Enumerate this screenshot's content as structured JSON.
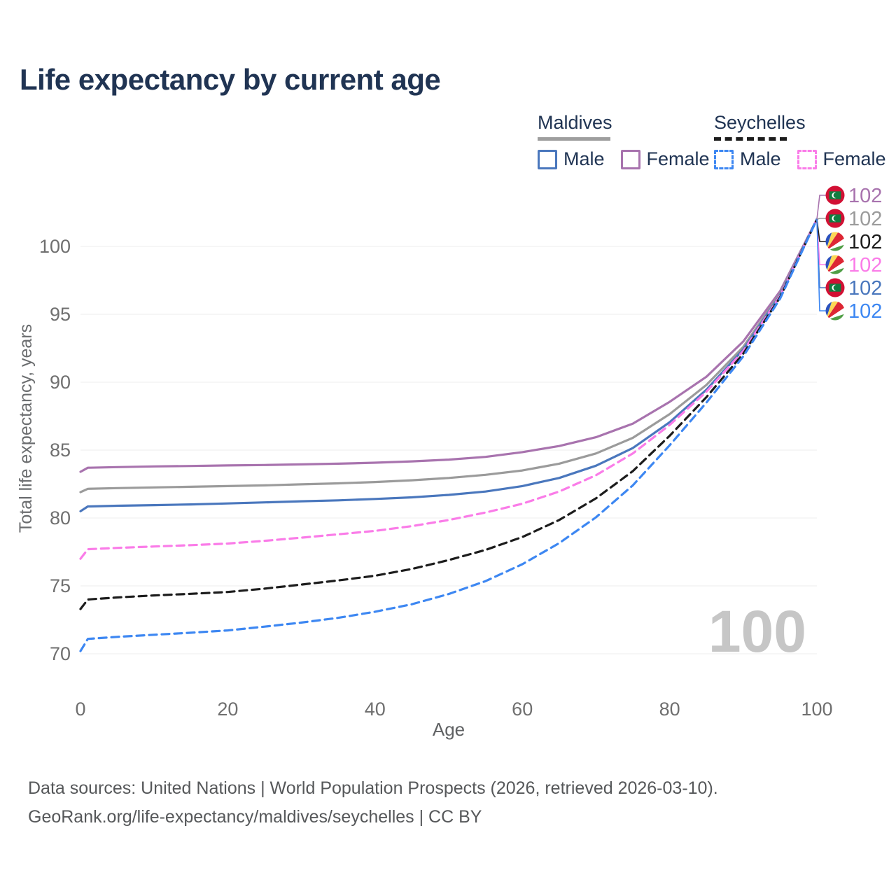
{
  "title": "Life expectancy by current age",
  "legend": {
    "groups": [
      {
        "country": "Maldives",
        "line_color": "#9e9e9e",
        "line_dashed": false,
        "items": [
          {
            "label": "Male",
            "color": "#4a77bd",
            "dashed": false
          },
          {
            "label": "Female",
            "color": "#a873ae",
            "dashed": false
          }
        ]
      },
      {
        "country": "Seychelles",
        "line_color": "#1c1c1c",
        "line_dashed": true,
        "items": [
          {
            "label": "Male",
            "color": "#3d87f2",
            "dashed": true
          },
          {
            "label": "Female",
            "color": "#fa7ce8",
            "dashed": true
          }
        ]
      }
    ]
  },
  "watermark": "100",
  "footer": {
    "line1": "Data sources: United Nations | World Population Prospects (2026, retrieved 2026-03-10).",
    "line2": "GeoRank.org/life-expectancy/maldives/seychelles | CC BY"
  },
  "flags": {
    "maldives": {
      "red": "#d21034",
      "green": "#0f7d40",
      "crescent": "#ffffff"
    },
    "seychelles": {
      "blue": "#2a51be",
      "yellow": "#fcd856",
      "red": "#dd2633",
      "white": "#ffffff",
      "green": "#4f9e45"
    }
  },
  "chart_data": {
    "type": "line",
    "title": "Life expectancy by current age",
    "xlabel": "Age",
    "ylabel": "Total life expectancy, years",
    "xlim": [
      0,
      100
    ],
    "ylim": [
      68.5,
      103.5
    ],
    "x_ticks": [
      0,
      20,
      40,
      60,
      80,
      100
    ],
    "y_ticks": [
      70,
      75,
      80,
      85,
      90,
      95,
      100
    ],
    "grid": "horizontal-only",
    "legend_position": "top-right",
    "tick_color": "#6f6f6f",
    "grid_color": "#ececec",
    "watermark_color": "#c6c6c6",
    "ages": [
      0,
      1,
      5,
      10,
      15,
      20,
      25,
      30,
      35,
      40,
      45,
      50,
      55,
      60,
      65,
      70,
      75,
      80,
      85,
      90,
      95,
      100
    ],
    "series": [
      {
        "name": "Maldives Female",
        "color": "#a873ae",
        "dashed": false,
        "flag": "maldives",
        "end_label": "102",
        "label_row": 0,
        "values": [
          83.4,
          83.7,
          83.75,
          83.8,
          83.83,
          83.87,
          83.9,
          83.95,
          84.0,
          84.07,
          84.17,
          84.3,
          84.5,
          84.85,
          85.3,
          85.95,
          86.95,
          88.55,
          90.4,
          93.0,
          96.7,
          102
        ]
      },
      {
        "name": "Maldives",
        "color": "#9b9b9b",
        "dashed": false,
        "flag": "maldives",
        "end_label": "102",
        "label_row": 1,
        "values": [
          81.9,
          82.15,
          82.2,
          82.25,
          82.3,
          82.35,
          82.4,
          82.48,
          82.55,
          82.65,
          82.78,
          82.95,
          83.18,
          83.5,
          84.0,
          84.75,
          85.9,
          87.65,
          89.8,
          92.6,
          96.5,
          102
        ]
      },
      {
        "name": "Maldives Male",
        "color": "#4a77bd",
        "dashed": false,
        "flag": "maldives",
        "end_label": "102",
        "label_row": 4,
        "values": [
          80.5,
          80.85,
          80.9,
          80.95,
          81.0,
          81.07,
          81.15,
          81.23,
          81.3,
          81.4,
          81.52,
          81.7,
          81.95,
          82.35,
          82.95,
          83.85,
          85.15,
          87.05,
          89.45,
          92.4,
          96.4,
          102
        ]
      },
      {
        "name": "Seychelles Female",
        "color": "#fa7ce8",
        "dashed": true,
        "flag": "seychelles",
        "end_label": "102",
        "label_row": 3,
        "values": [
          77.0,
          77.7,
          77.8,
          77.9,
          78.0,
          78.12,
          78.32,
          78.55,
          78.8,
          79.05,
          79.4,
          79.85,
          80.4,
          81.05,
          81.95,
          83.15,
          84.75,
          86.85,
          89.3,
          92.3,
          96.35,
          102
        ]
      },
      {
        "name": "Seychelles",
        "color": "#1c1c1c",
        "dashed": true,
        "flag": "seychelles",
        "end_label": "102",
        "label_row": 2,
        "values": [
          73.3,
          74.0,
          74.15,
          74.3,
          74.42,
          74.55,
          74.8,
          75.1,
          75.4,
          75.75,
          76.25,
          76.9,
          77.65,
          78.6,
          79.85,
          81.45,
          83.45,
          86.05,
          88.9,
          92.1,
          96.25,
          102
        ]
      },
      {
        "name": "Seychelles Male",
        "color": "#3d87f2",
        "dashed": true,
        "flag": "seychelles",
        "end_label": "102",
        "label_row": 5,
        "values": [
          70.2,
          71.1,
          71.25,
          71.4,
          71.55,
          71.72,
          72.0,
          72.3,
          72.65,
          73.1,
          73.65,
          74.4,
          75.35,
          76.6,
          78.15,
          80.05,
          82.4,
          85.35,
          88.5,
          91.9,
          96.15,
          102
        ]
      }
    ]
  }
}
